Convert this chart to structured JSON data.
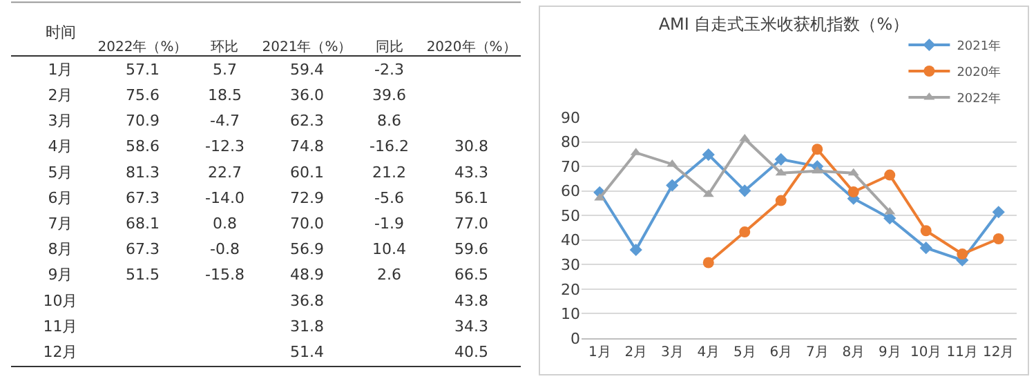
{
  "chart_data": [
    {
      "type": "heatmap",
      "annotations": [
        "时间"
      ],
      "data_labels": true,
      "categories": [
        "2022年（%）",
        "环比",
        "2021年（%）",
        "同比",
        "2020年（%）"
      ],
      "y_categories": [
        "1月",
        "2月",
        "3月",
        "4月",
        "5月",
        "6月",
        "7月",
        "8月",
        "9月",
        "10月",
        "11月",
        "12月"
      ],
      "cells": [
        [
          57.1,
          5.7,
          59.4,
          -2.3,
          null
        ],
        [
          75.6,
          18.5,
          36.0,
          39.6,
          null
        ],
        [
          70.9,
          -4.7,
          62.3,
          8.6,
          null
        ],
        [
          58.6,
          -12.3,
          74.8,
          -16.2,
          30.8
        ],
        [
          81.3,
          22.7,
          60.1,
          21.2,
          43.3
        ],
        [
          67.3,
          -14.0,
          72.9,
          -5.6,
          56.1
        ],
        [
          68.1,
          0.8,
          70.0,
          -1.9,
          77.0
        ],
        [
          67.3,
          -0.8,
          56.9,
          10.4,
          59.6
        ],
        [
          51.5,
          -15.8,
          48.9,
          2.6,
          66.5
        ],
        [
          null,
          null,
          36.8,
          null,
          43.8
        ],
        [
          null,
          null,
          31.8,
          null,
          34.3
        ],
        [
          null,
          null,
          51.4,
          null,
          40.5
        ]
      ],
      "cell_labels": [
        [
          "57.1",
          "5.7",
          "59.4",
          "-2.3",
          null
        ],
        [
          "75.6",
          "18.5",
          "36.0",
          "39.6",
          null
        ],
        [
          "70.9",
          "-4.7",
          "62.3",
          "8.6",
          null
        ],
        [
          "58.6",
          "-12.3",
          "74.8",
          "-16.2",
          "30.8"
        ],
        [
          "81.3",
          "22.7",
          "60.1",
          "21.2",
          "43.3"
        ],
        [
          "67.3",
          "-14.0",
          "72.9",
          "-5.6",
          "56.1"
        ],
        [
          "68.1",
          "0.8",
          "70.0",
          "-1.9",
          "77.0"
        ],
        [
          "67.3",
          "-0.8",
          "56.9",
          "10.4",
          "59.6"
        ],
        [
          "51.5",
          "-15.8",
          "48.9",
          "2.6",
          "66.5"
        ],
        [
          null,
          null,
          "36.8",
          null,
          "43.8"
        ],
        [
          null,
          null,
          "31.8",
          null,
          "34.3"
        ],
        [
          null,
          null,
          "51.4",
          null,
          "40.5"
        ]
      ]
    },
    {
      "type": "line",
      "title": "AMI 自走式玉米收获机指数（%）",
      "categories": [
        "1月",
        "2月",
        "3月",
        "4月",
        "5月",
        "6月",
        "7月",
        "8月",
        "9月",
        "10月",
        "11月",
        "12月"
      ],
      "series": [
        {
          "name": "2021年",
          "color": "#5b9bd5",
          "marker": "diamond",
          "values": [
            59.4,
            36.0,
            62.3,
            74.8,
            60.1,
            72.9,
            70.0,
            56.9,
            48.9,
            36.8,
            31.8,
            51.4
          ]
        },
        {
          "name": "2020年",
          "color": "#ed7d31",
          "marker": "circle",
          "values": [
            null,
            null,
            null,
            30.8,
            43.3,
            56.1,
            77.0,
            59.6,
            66.5,
            43.8,
            34.3,
            40.5
          ]
        },
        {
          "name": "2022年",
          "color": "#a5a5a5",
          "marker": "triangle",
          "values": [
            57.1,
            75.6,
            70.9,
            58.6,
            81.3,
            67.3,
            68.1,
            67.3,
            51.5,
            null,
            null,
            null
          ]
        }
      ],
      "ylim": [
        0,
        90
      ],
      "yticks": [
        0,
        10,
        20,
        30,
        40,
        50,
        60,
        70,
        80,
        90
      ],
      "grid": "y",
      "legend": "top right"
    }
  ]
}
